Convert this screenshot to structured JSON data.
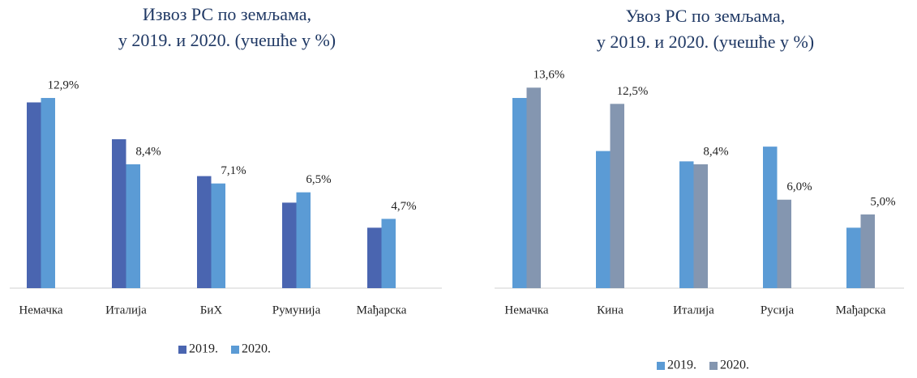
{
  "chart_data": [
    {
      "type": "bar",
      "title": [
        "Извоз РС по земљама,",
        "у 2019. и 2020. (учешће у %)"
      ],
      "categories": [
        "Немачка",
        "Италија",
        "БиХ",
        "Румунија",
        "Мађарска"
      ],
      "series": [
        {
          "name": "2019.",
          "color": "#4a65b0",
          "values": [
            12.6,
            10.1,
            7.6,
            5.8,
            4.1
          ]
        },
        {
          "name": "2020.",
          "color": "#5b9bd5",
          "values": [
            12.9,
            8.4,
            7.1,
            6.5,
            4.7
          ],
          "value_labels": [
            "12,9%",
            "8,4%",
            "7,1%",
            "6,5%",
            "4,7%"
          ]
        }
      ],
      "ylim": [
        0,
        14
      ]
    },
    {
      "type": "bar",
      "title": [
        "Увоз РС по земљама,",
        "у 2019. и 2020. (учешће у %)"
      ],
      "categories": [
        "Немачка",
        "Кина",
        "Италија",
        "Русија",
        "Мађарска"
      ],
      "series": [
        {
          "name": "2019.",
          "color": "#5b9bd5",
          "values": [
            12.9,
            9.3,
            8.6,
            9.6,
            4.1
          ]
        },
        {
          "name": "2020.",
          "color": "#8496b0",
          "values": [
            13.6,
            12.5,
            8.4,
            6.0,
            5.0
          ],
          "value_labels": [
            "13,6%",
            "12,5%",
            "8,4%",
            "6,0%",
            "5,0%"
          ]
        }
      ],
      "ylim": [
        0,
        14
      ]
    }
  ]
}
